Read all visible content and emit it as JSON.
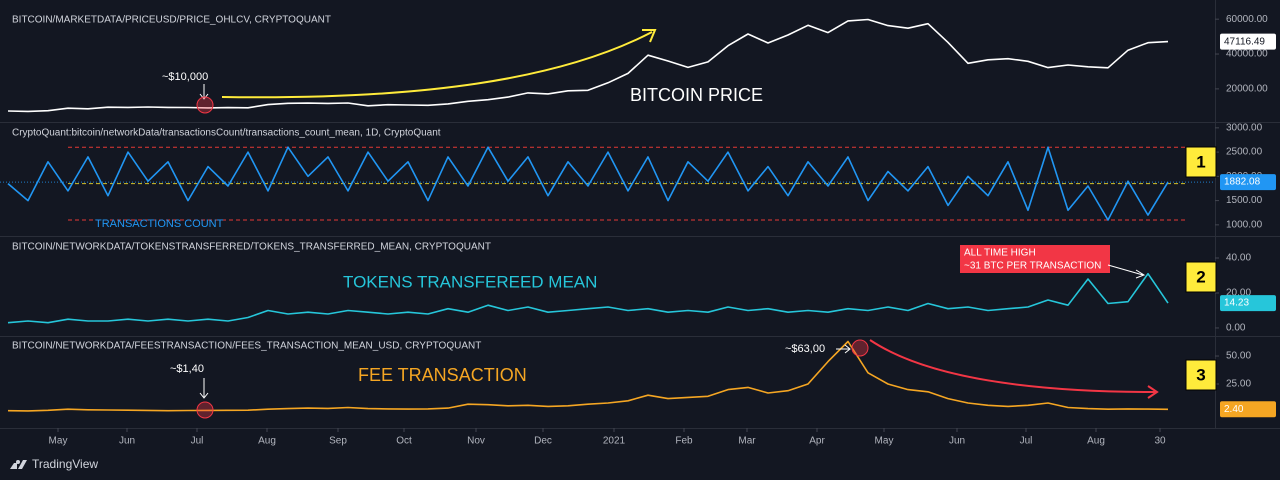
{
  "chart_data": [
    {
      "type": "line",
      "title": "BITCOIN/MARKETDATA/PRICEUSD/PRICE_OHLCV, CRYPTOQUANT",
      "color": "#ffffff",
      "xlim": [
        0,
        60.35
      ],
      "ylim": [
        1000,
        71000
      ],
      "yticks": [
        {
          "value": 20000,
          "label": "20000.00"
        },
        {
          "value": 40000,
          "label": "40000.00"
        },
        {
          "value": 60000,
          "label": "60000.00"
        }
      ],
      "values": [
        7300,
        7100,
        7500,
        8900,
        8600,
        9500,
        9400,
        9600,
        9400,
        9300,
        9100,
        9250,
        9150,
        11000,
        11750,
        11850,
        11650,
        11900,
        10300,
        10900,
        10750,
        10600,
        11400,
        12900,
        13800,
        15300,
        17700,
        17100,
        18900,
        19200,
        23500,
        28900,
        39300,
        36000,
        32300,
        35500,
        44800,
        51500,
        46300,
        50900,
        56500,
        52300,
        59000,
        59800,
        56300,
        54800,
        57400,
        46700,
        34700,
        36700,
        37300,
        35800,
        32200,
        33700,
        32700,
        32100,
        42200,
        46500,
        47116.49
      ],
      "current_value": {
        "value": 47116.49,
        "label": "47116.49"
      },
      "annotations": [
        "~$10,000",
        "BITCOIN PRICE"
      ]
    },
    {
      "type": "line",
      "title": "CryptoQuant:bitcoin/networkData/transactionsCount/transactions_count_mean, 1D, CryptoQuant",
      "color": "#2196f3",
      "xlim": [
        0,
        60.35
      ],
      "ylim": [
        770,
        3100
      ],
      "yticks": [
        {
          "value": 1000,
          "label": "1000.00"
        },
        {
          "value": 1500,
          "label": "1500.00"
        },
        {
          "value": 2000,
          "label": "2000.00"
        },
        {
          "value": 2500,
          "label": "2500.00"
        },
        {
          "value": 3000,
          "label": "3000.00"
        }
      ],
      "values": [
        1850,
        1500,
        2300,
        1700,
        2400,
        1600,
        2500,
        1900,
        2300,
        1500,
        2200,
        1800,
        2500,
        1700,
        2600,
        2000,
        2400,
        1700,
        2500,
        1900,
        2300,
        1500,
        2400,
        1800,
        2600,
        1900,
        2400,
        1600,
        2300,
        1800,
        2500,
        1700,
        2400,
        1500,
        2300,
        1900,
        2500,
        1700,
        2200,
        1600,
        2300,
        1800,
        2400,
        1500,
        2100,
        1700,
        2200,
        1400,
        2000,
        1600,
        2300,
        1300,
        2600,
        1300,
        1800,
        1100,
        1900,
        1200,
        1882.08
      ],
      "current_value": {
        "value": 1882.08,
        "label": "1882.08"
      },
      "reference_lines": [
        {
          "value": 2600,
          "color": "#e53935"
        },
        {
          "value": 1850,
          "color": "#d4c22a"
        },
        {
          "value": 1100,
          "color": "#e53935"
        }
      ],
      "annotations": [
        "TRANSACTIONS COUNT"
      ],
      "badge": "1"
    },
    {
      "type": "line",
      "title": "BITCOIN/NETWORKDATA/TOKENSTRANSFERRED/TOKENS_TRANSFERRED_MEAN, CRYPTOQUANT",
      "color": "#26c6da",
      "xlim": [
        0,
        60.35
      ],
      "ylim": [
        -4.6,
        52
      ],
      "yticks": [
        {
          "value": 0,
          "label": "0.00"
        },
        {
          "value": 20,
          "label": "20.00"
        },
        {
          "value": 40,
          "label": "40.00"
        }
      ],
      "values": [
        3,
        4,
        3,
        5,
        4,
        4,
        5,
        4,
        5,
        4,
        5,
        4,
        6,
        10,
        8,
        9,
        8,
        10,
        9,
        8,
        9,
        8,
        11,
        9,
        13,
        10,
        12,
        9,
        10,
        11,
        12,
        10,
        11,
        9,
        10,
        9,
        12,
        10,
        11,
        9,
        10,
        9,
        11,
        10,
        12,
        10,
        14,
        11,
        12,
        10,
        11,
        12,
        16,
        13,
        28,
        14,
        15,
        31,
        14.23
      ],
      "current_value": {
        "value": 14.23,
        "label": "14.23"
      },
      "annotations": [
        "TOKENS TRANSFEREED MEAN",
        "ALL TIME HIGH",
        "~31 BTC PER TRANSACTION"
      ],
      "badge": "2"
    },
    {
      "type": "line",
      "title": "BITCOIN/NETWORKDATA/FEESTRANSACTION/FEES_TRANSACTION_MEAN_USD, CRYPTOQUANT",
      "color": "#f5a623",
      "xlim": [
        0,
        60.35
      ],
      "ylim": [
        -14.3,
        67
      ],
      "yticks": [
        {
          "value": 25,
          "label": "25.00"
        },
        {
          "value": 50,
          "label": "50.00"
        }
      ],
      "values": [
        1.2,
        1.0,
        1.5,
        2.5,
        2.0,
        1.8,
        1.6,
        1.4,
        1.2,
        1.3,
        1.4,
        1.5,
        1.6,
        2.5,
        3.0,
        3.5,
        3.2,
        4.0,
        3.0,
        2.8,
        2.6,
        2.8,
        3.5,
        7.0,
        6.5,
        5.5,
        6.0,
        5.0,
        5.5,
        7.0,
        8.0,
        10.0,
        15.0,
        12.0,
        13.0,
        14.0,
        20.0,
        22.0,
        17.0,
        19.0,
        25.0,
        45.0,
        63.0,
        35.0,
        25.0,
        20.0,
        18.0,
        12.0,
        8.0,
        6.0,
        5.0,
        6.0,
        8.0,
        4.0,
        3.0,
        2.5,
        2.8,
        2.6,
        2.4
      ],
      "current_value": {
        "value": 2.4,
        "label": "2.40"
      },
      "annotations": [
        "~$63,00",
        "~$1,40",
        "FEE TRANSACTION"
      ],
      "badge": "3",
      "xticks": [
        {
          "value": 2.5,
          "label": "May"
        },
        {
          "value": 5.95,
          "label": "Jun"
        },
        {
          "value": 9.45,
          "label": "Jul"
        },
        {
          "value": 12.95,
          "label": "Aug"
        },
        {
          "value": 16.5,
          "label": "Sep"
        },
        {
          "value": 19.8,
          "label": "Oct"
        },
        {
          "value": 23.4,
          "label": "Nov"
        },
        {
          "value": 26.75,
          "label": "Dec"
        },
        {
          "value": 30.3,
          "label": "2021"
        },
        {
          "value": 33.8,
          "label": "Feb"
        },
        {
          "value": 36.95,
          "label": "Mar"
        },
        {
          "value": 40.45,
          "label": "Apr"
        },
        {
          "value": 43.8,
          "label": "May"
        },
        {
          "value": 47.45,
          "label": "Jun"
        },
        {
          "value": 50.9,
          "label": "Jul"
        },
        {
          "value": 54.4,
          "label": "Aug"
        },
        {
          "value": 57.6,
          "label": "30"
        }
      ]
    }
  ],
  "footer": "TradingView"
}
